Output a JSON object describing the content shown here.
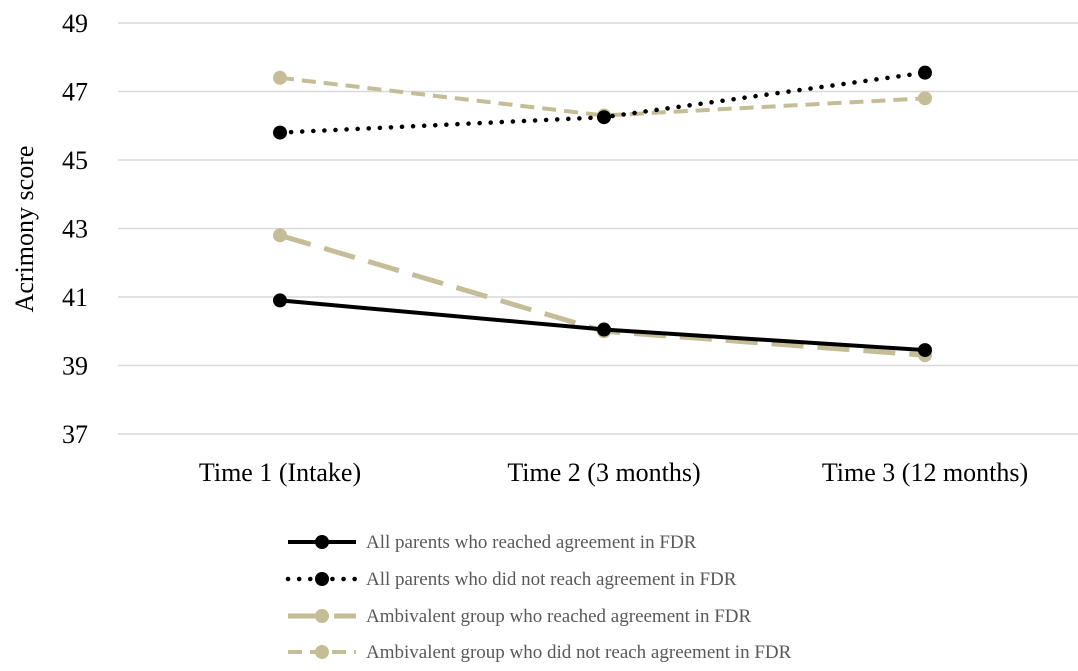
{
  "chart_data": {
    "type": "line",
    "title": "",
    "xlabel": "",
    "ylabel": "Acrimony score",
    "ylim": [
      37,
      49
    ],
    "yticks": [
      "49",
      "47",
      "45",
      "43",
      "41",
      "39",
      "37"
    ],
    "ytick_values": [
      49,
      47,
      45,
      43,
      41,
      39,
      37
    ],
    "grid": "horizontal",
    "legend_position": "bottom",
    "categories": [
      "Time 1 (Intake)",
      "Time 2 (3 months)",
      "Time 3 (12 months)"
    ],
    "series": [
      {
        "name": "All parents who reached agreement in FDR",
        "values": [
          40.9,
          40.05,
          39.45
        ],
        "color": "#000000",
        "style": "solid"
      },
      {
        "name": "All parents who did not reach agreement in FDR",
        "values": [
          45.8,
          46.25,
          47.55
        ],
        "color": "#000000",
        "style": "dotted"
      },
      {
        "name": "Ambivalent group who reached agreement in FDR",
        "values": [
          42.8,
          40.0,
          39.3
        ],
        "color": "#c4bd97",
        "style": "long-dash"
      },
      {
        "name": "Ambivalent group who did not reach agreement in FDR",
        "values": [
          47.4,
          46.3,
          46.8
        ],
        "color": "#c4bd97",
        "style": "dash"
      }
    ]
  }
}
